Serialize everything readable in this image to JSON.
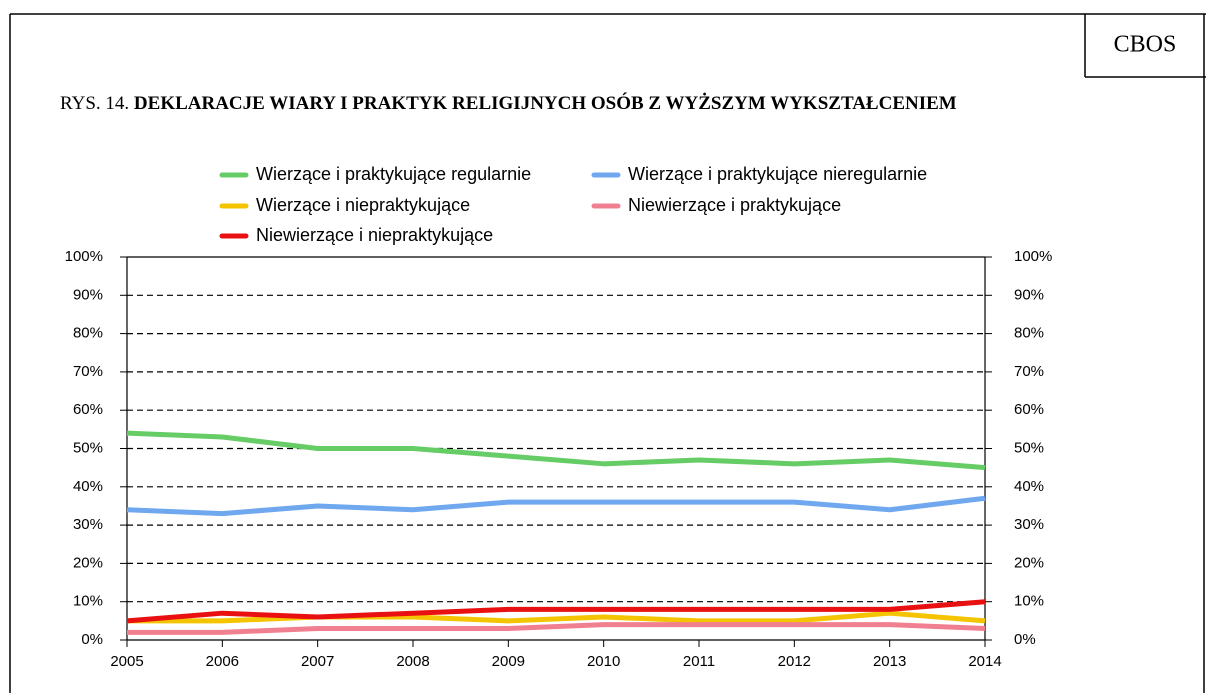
{
  "brand": "CBOS",
  "chart_data": {
    "type": "line",
    "figure_label": "RYS. 14.",
    "title": "DEKLARACJE WIARY I PRAKTYK RELIGIJNYCH OSÓB Z WYŻSZYM WYKSZTAŁCENIEM",
    "x": [
      2005,
      2006,
      2007,
      2008,
      2009,
      2010,
      2011,
      2012,
      2013,
      2014
    ],
    "xlim": [
      2005,
      2014
    ],
    "xticks": [
      2005,
      2006,
      2007,
      2008,
      2009,
      2010,
      2011,
      2012,
      2013,
      2014
    ],
    "ylim": [
      0,
      100
    ],
    "yticks": [
      {
        "value": 0,
        "label": "0%"
      },
      {
        "value": 10,
        "label": "10%"
      },
      {
        "value": 20,
        "label": "20%"
      },
      {
        "value": 30,
        "label": "30%"
      },
      {
        "value": 40,
        "label": "40%"
      },
      {
        "value": 50,
        "label": "50%"
      },
      {
        "value": 60,
        "label": "60%"
      },
      {
        "value": 70,
        "label": "70%"
      },
      {
        "value": 80,
        "label": "80%"
      },
      {
        "value": 90,
        "label": "90%"
      },
      {
        "value": 100,
        "label": "100%"
      }
    ],
    "grid": true,
    "series": [
      {
        "name": "Wierzące i praktykujące regularnie",
        "color": "#66cc66",
        "values": [
          54,
          53,
          50,
          50,
          48,
          46,
          47,
          46,
          47,
          45
        ]
      },
      {
        "name": "Wierzące i praktykujące nieregularnie",
        "color": "#6fa8ee",
        "values": [
          34,
          33,
          35,
          34,
          36,
          36,
          36,
          36,
          34,
          37
        ]
      },
      {
        "name": "Wierzące i niepraktykujące",
        "color": "#f5c400",
        "values": [
          5,
          5,
          6,
          6,
          5,
          6,
          5,
          5,
          7,
          5
        ]
      },
      {
        "name": "Niewierzące i praktykujące",
        "color": "#f08090",
        "values": [
          2,
          2,
          3,
          3,
          3,
          4,
          4,
          4,
          4,
          3
        ]
      },
      {
        "name": "Niewierzące i niepraktykujące",
        "color": "#e81010",
        "values": [
          5,
          7,
          6,
          7,
          8,
          8,
          8,
          8,
          8,
          10
        ]
      }
    ]
  }
}
